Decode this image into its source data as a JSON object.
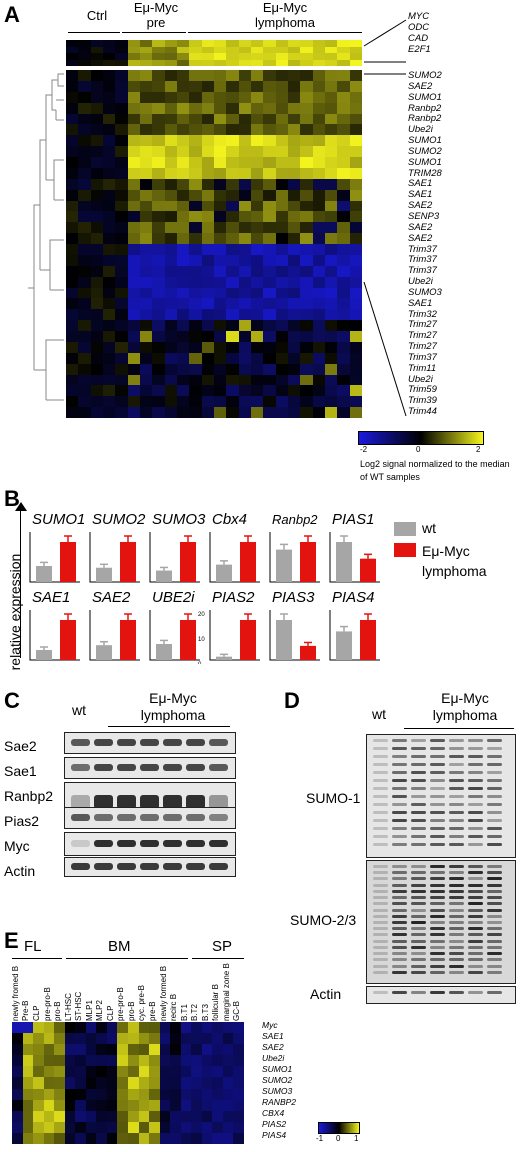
{
  "panelA": {
    "letter": "A",
    "group_ctrl": "Ctrl",
    "group_pre": "Eμ-Myc",
    "group_pre_sub": "pre",
    "group_lymph": "Eμ-Myc",
    "group_lymph_sub": "lymphoma",
    "top_genes": [
      "MYC",
      "ODC",
      "CAD",
      "E2F1"
    ],
    "main_genes": [
      "SUMO2",
      "SAE2",
      "SUMO1",
      "Ranbp2",
      "Ranbp2",
      "Ube2i",
      "SUMO1",
      "SUMO2",
      "SUMO1",
      "TRIM28",
      "SAE1",
      "SAE1",
      "SAE2",
      "SENP3",
      "SAE2",
      "SAE2",
      "Trim37",
      "Trim37",
      "Trim37",
      "Ube2i",
      "SUMO3",
      "SAE1",
      "Trim32",
      "Trim27",
      "Trim27",
      "Trim27",
      "Trim37",
      "Trim11",
      "Ube2i",
      "Trim59",
      "Trim39",
      "Trim44"
    ],
    "colorbar_ticks": [
      "-2",
      "0",
      "2"
    ],
    "colorbar_caption": "Log2 signal normalized to the median of WT samples",
    "colors": {
      "low": "#1a1adc",
      "mid": "#000000",
      "high": "#f5f51e"
    }
  },
  "panelB": {
    "letter": "B",
    "ylabel": "relative expression",
    "legend": [
      {
        "label": "wt",
        "color": "#a6a6a6"
      },
      {
        "label": "Eμ-Myc lymphoma",
        "color": "#e3140f"
      }
    ],
    "chart_data": {
      "type": "bar",
      "groups": [
        "wt",
        "Eμ-Myc lymphoma"
      ],
      "panels": [
        {
          "gene": "SUMO1",
          "values": [
            1.0,
            2.5
          ]
        },
        {
          "gene": "SUMO2",
          "values": [
            1.0,
            2.8
          ]
        },
        {
          "gene": "SUMO3",
          "values": [
            1.0,
            3.5
          ]
        },
        {
          "gene": "Cbx4",
          "values": [
            1.0,
            2.3
          ]
        },
        {
          "gene": "Ranbp2",
          "values": [
            1.7,
            2.1
          ]
        },
        {
          "gene": "PIAS1",
          "values": [
            1.2,
            0.7
          ]
        },
        {
          "gene": "SAE1",
          "values": [
            1.0,
            4.0
          ]
        },
        {
          "gene": "SAE2",
          "values": [
            1.0,
            2.7
          ]
        },
        {
          "gene": "UBE2i",
          "values": [
            1.0,
            2.5
          ]
        },
        {
          "gene": "PIAS2",
          "values": [
            1.0,
            12.0
          ]
        },
        {
          "gene": "PIAS3",
          "values": [
            1.7,
            0.6
          ]
        },
        {
          "gene": "PIAS4",
          "values": [
            1.0,
            1.4
          ]
        }
      ],
      "tick_labels": {
        "PIAS2": [
          "20",
          "10",
          "0"
        ]
      }
    }
  },
  "panelC": {
    "letter": "C",
    "lane_wt": "wt",
    "lane_group": "Eμ-Myc",
    "lane_group_sub": "lymphoma",
    "rows": [
      "Sae2",
      "Sae1",
      "Ranbp2",
      "Pias2",
      "Myc",
      "Actin"
    ]
  },
  "panelD": {
    "letter": "D",
    "lane_wt": "wt",
    "lane_group": "Eμ-Myc",
    "lane_group_sub": "lymphoma",
    "rows": [
      "SUMO-1",
      "SUMO-2/3",
      "Actin"
    ]
  },
  "panelE": {
    "letter": "E",
    "groups": [
      "FL",
      "BM",
      "SP"
    ],
    "columns": [
      "newly fromed B",
      "Pre-B",
      "CLP",
      "pre-pro-B",
      "pro-B",
      "LT-HSC",
      "ST-HSC",
      "MLP1",
      "MLP2",
      "CLP",
      "pre-pro-B",
      "pro-B",
      "cyc. pre-B",
      "pre-B",
      "newly formed B",
      "recirc B",
      "B.T1",
      "B.T2",
      "B.T3",
      "follicular B",
      "marginal zone B",
      "GC-B"
    ],
    "genes": [
      "Myc",
      "SAE1",
      "SAE2",
      "Ube2i",
      "SUMO1",
      "SUMO2",
      "SUMO3",
      "RANBP2",
      "CBX4",
      "PIAS2",
      "PIAS4"
    ],
    "colorbar_ticks": [
      "-1",
      "0",
      "1"
    ]
  }
}
